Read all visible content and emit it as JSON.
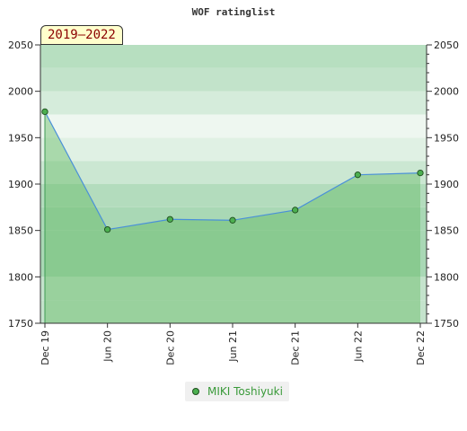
{
  "chart_data": {
    "type": "area",
    "title": "WOF ratinglist",
    "period_label": "2019–2022",
    "x": [
      "Dec 19",
      "Jun 20",
      "Dec 20",
      "Jun 21",
      "Dec 21",
      "Jun 22",
      "Dec 22"
    ],
    "series": [
      {
        "name": "MIKI Toshiyuki",
        "values": [
          1978,
          1851,
          1862,
          1861,
          1872,
          1910,
          1912
        ]
      }
    ],
    "ylim": [
      1750,
      2050
    ],
    "yticks": [
      1750,
      1800,
      1850,
      1900,
      1950,
      2000,
      2050
    ],
    "y_axis_both_sides": true,
    "legend_position": "bottom-center",
    "colors": {
      "line": "#4a90d9",
      "fill": "#5cb85c",
      "marker": "#4caf50"
    }
  }
}
